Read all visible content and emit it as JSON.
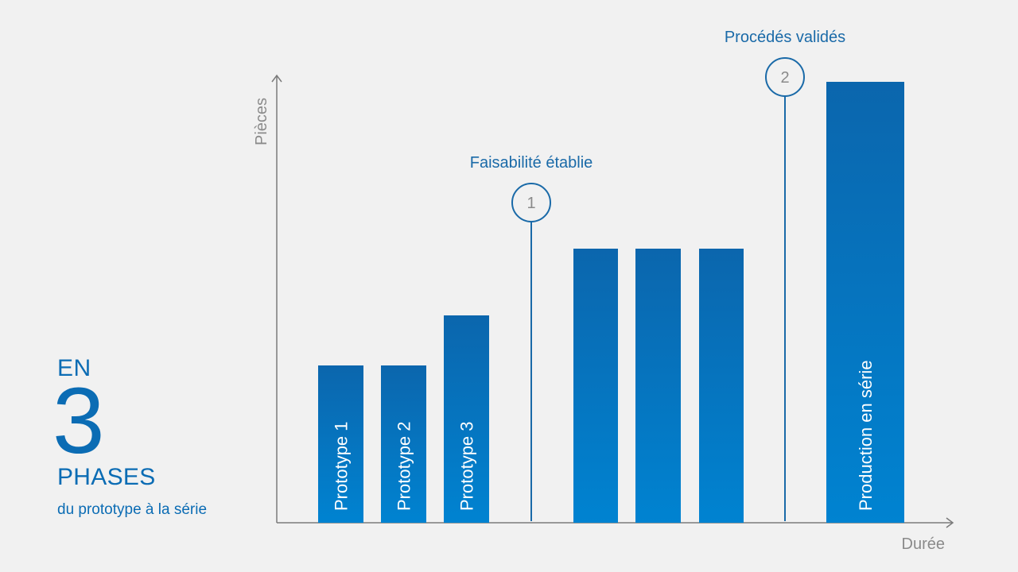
{
  "intro": {
    "line1": "EN",
    "number": "3",
    "line2": "PHASES",
    "subtitle": "du prototype à la série"
  },
  "colors": {
    "background": "#f1f1f1",
    "bar_top": "#0b66ad",
    "bar_bottom": "#0083d1",
    "axis": "#7a7a7a",
    "milestone": "#1a6aa8",
    "label": "#1a6aa8",
    "axis_label": "#8a8a8a"
  },
  "chart_data": {
    "type": "bar",
    "title": "",
    "xlabel": "Durée",
    "ylabel": "Pièces",
    "ylim": [
      0,
      100
    ],
    "categories": [
      "Prototype 1",
      "Prototype 2",
      "Prototype 3",
      "",
      "",
      "",
      "Production en série"
    ],
    "values": [
      33,
      33,
      43.5,
      57.5,
      57.5,
      57.5,
      92.5
    ],
    "bar_labels": [
      "Prototype 1",
      "Prototype 2",
      "Prototype 3",
      "",
      "",
      "",
      "Production en série"
    ],
    "milestones": [
      {
        "number": "1",
        "label": "Faisabilité établie",
        "after_category_index": 2
      },
      {
        "number": "2",
        "label": "Procédés validés",
        "after_category_index": 5
      }
    ]
  }
}
